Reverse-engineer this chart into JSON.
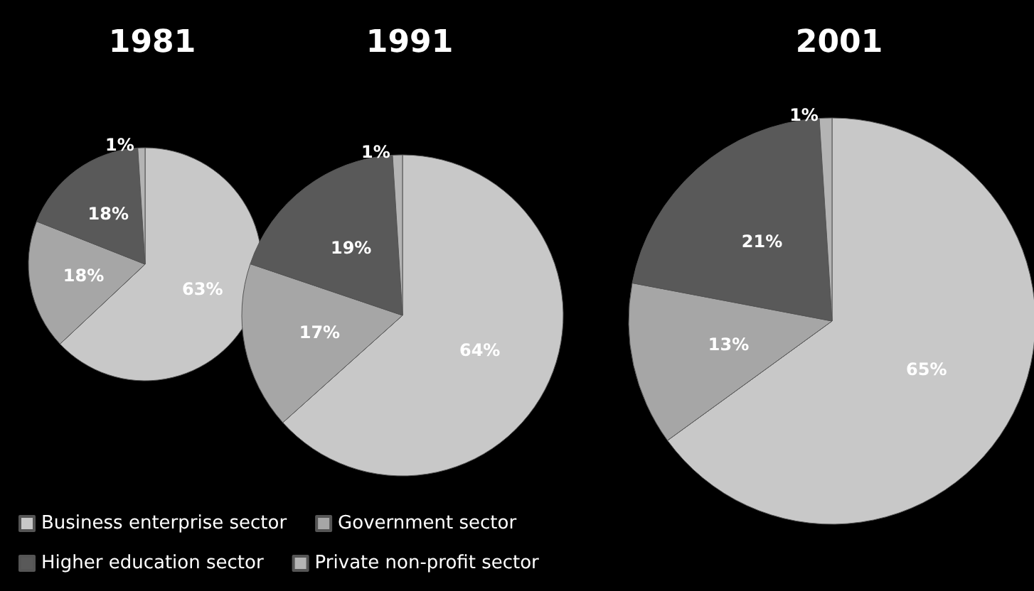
{
  "chart_data": {
    "type": "pie",
    "categories": [
      "Business enterprise sector",
      "Government sector",
      "Higher education sector",
      "Private non-profit sector"
    ],
    "colors": [
      "#c8c8c8",
      "#a6a6a6",
      "#595959",
      "#b4b4b4"
    ],
    "legend": "bottom left",
    "series": [
      {
        "name": "1981",
        "values": [
          63,
          18,
          18,
          1
        ],
        "value_labels": [
          "63%",
          "18%",
          "18%",
          "1%"
        ]
      },
      {
        "name": "1991",
        "values": [
          64,
          17,
          19,
          1
        ],
        "value_labels": [
          "64%",
          "17%",
          "19%",
          "1%"
        ]
      },
      {
        "name": "2001",
        "values": [
          65,
          13,
          21,
          1
        ],
        "value_labels": [
          "65%",
          "13%",
          "21%",
          "1%"
        ]
      }
    ]
  }
}
